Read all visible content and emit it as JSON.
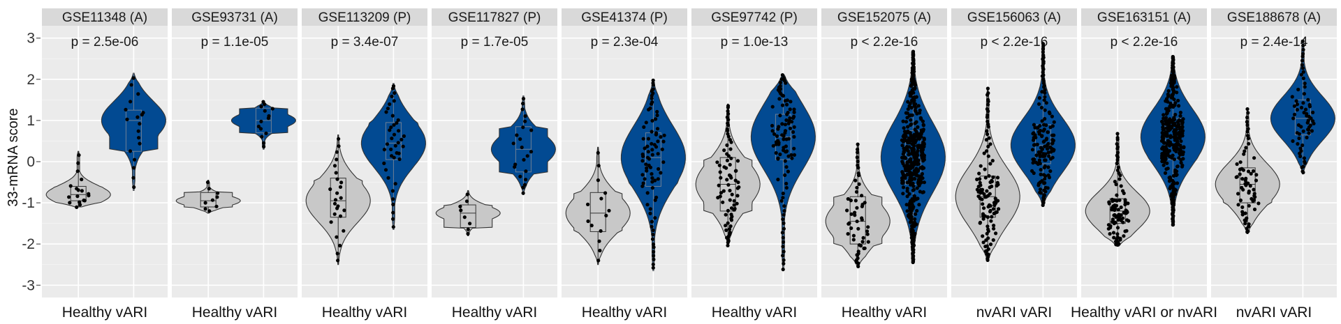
{
  "chart_data": {
    "type": "violin",
    "ylabel": "33-mRNA score",
    "ylim": [
      -3.3,
      3.3
    ],
    "yticks": [
      "-3",
      "-2",
      "-1",
      "0",
      "1",
      "2",
      "3"
    ],
    "colors": {
      "group_1": "#c8c8c8",
      "group_2": "#024a92"
    },
    "facets": [
      {
        "title": "GSE11348 (A)",
        "p_value": "p = 2.5e-06",
        "x_label": "Healthy vARI",
        "groups": [
          {
            "min": -1.1,
            "q1": -0.95,
            "median": -0.8,
            "q3": -0.6,
            "max": 0.25,
            "n": 18
          },
          {
            "min": -0.7,
            "q1": 0.25,
            "median": 1.0,
            "q3": 1.25,
            "max": 2.15,
            "n": 18
          }
        ]
      },
      {
        "title": "GSE93731 (A)",
        "p_value": "p = 1.1e-05",
        "x_label": "Healthy vARI",
        "groups": [
          {
            "min": -1.25,
            "q1": -1.1,
            "median": -0.95,
            "q3": -0.75,
            "max": -0.45,
            "n": 9
          },
          {
            "min": 0.3,
            "q1": 0.7,
            "median": 1.0,
            "q3": 1.3,
            "max": 1.45,
            "n": 14
          }
        ]
      },
      {
        "title": "GSE113209 (P)",
        "p_value": "p = 3.4e-07",
        "x_label": "Healthy vARI",
        "groups": [
          {
            "min": -2.5,
            "q1": -1.35,
            "median": -0.95,
            "q3": -0.4,
            "max": 0.65,
            "n": 25
          },
          {
            "min": -1.65,
            "q1": 0.05,
            "median": 0.45,
            "q3": 0.95,
            "max": 1.9,
            "n": 40
          }
        ]
      },
      {
        "title": "GSE117827 (P)",
        "p_value": "p = 1.7e-05",
        "x_label": "Healthy vARI",
        "groups": [
          {
            "min": -1.8,
            "q1": -1.6,
            "median": -1.25,
            "q3": -1.05,
            "max": -0.7,
            "n": 8
          },
          {
            "min": -0.8,
            "q1": -0.25,
            "median": 0.3,
            "q3": 0.85,
            "max": 1.6,
            "n": 22
          }
        ]
      },
      {
        "title": "GSE41374 (P)",
        "p_value": "p = 2.3e-04",
        "x_label": "Healthy vARI",
        "groups": [
          {
            "min": -2.5,
            "q1": -1.7,
            "median": -1.25,
            "q3": -0.75,
            "max": 0.35,
            "n": 14
          },
          {
            "min": -2.65,
            "q1": -0.6,
            "median": 0.1,
            "q3": 0.7,
            "max": 2.0,
            "n": 80
          }
        ]
      },
      {
        "title": "GSE97742 (P)",
        "p_value": "p = 1.0e-13",
        "x_label": "Healthy vARI",
        "groups": [
          {
            "min": -2.05,
            "q1": -1.2,
            "median": -0.55,
            "q3": 0.1,
            "max": 1.4,
            "n": 75
          },
          {
            "min": -2.65,
            "q1": 0.05,
            "median": 0.6,
            "q3": 1.15,
            "max": 2.1,
            "n": 100
          }
        ]
      },
      {
        "title": "GSE152075 (A)",
        "p_value": "p < 2.2e-16",
        "x_label": "Healthy vARI",
        "groups": [
          {
            "min": -2.55,
            "q1": -2.0,
            "median": -1.45,
            "q3": -0.85,
            "max": 0.45,
            "n": 55
          },
          {
            "min": -2.45,
            "q1": -0.55,
            "median": 0.1,
            "q3": 0.75,
            "max": 2.7,
            "n": 430
          }
        ]
      },
      {
        "title": "GSE156063 (A)",
        "p_value": "p < 2.2e-16",
        "x_label": "nvARI vARI",
        "groups": [
          {
            "min": -2.4,
            "q1": -1.35,
            "median": -0.85,
            "q3": -0.35,
            "max": 1.8,
            "n": 110
          },
          {
            "min": -1.05,
            "q1": -0.05,
            "median": 0.4,
            "q3": 0.9,
            "max": 2.9,
            "n": 150
          }
        ]
      },
      {
        "title": "GSE163151 (A)",
        "p_value": "p < 2.2e-16",
        "x_label": "Healthy vARI or nvARI",
        "groups": [
          {
            "min": -2.05,
            "q1": -1.5,
            "median": -1.2,
            "q3": -0.9,
            "max": 0.7,
            "n": 90
          },
          {
            "min": -1.55,
            "q1": 0.05,
            "median": 0.6,
            "q3": 1.05,
            "max": 2.55,
            "n": 330
          }
        ]
      },
      {
        "title": "GSE188678 (A)",
        "p_value": "p = 2.4e-14",
        "x_label": "nvARI vARI",
        "groups": [
          {
            "min": -1.75,
            "q1": -1.0,
            "median": -0.55,
            "q3": -0.15,
            "max": 1.3,
            "n": 65
          },
          {
            "min": -0.3,
            "q1": 0.65,
            "median": 1.05,
            "q3": 1.5,
            "max": 2.95,
            "n": 65
          }
        ]
      }
    ]
  }
}
